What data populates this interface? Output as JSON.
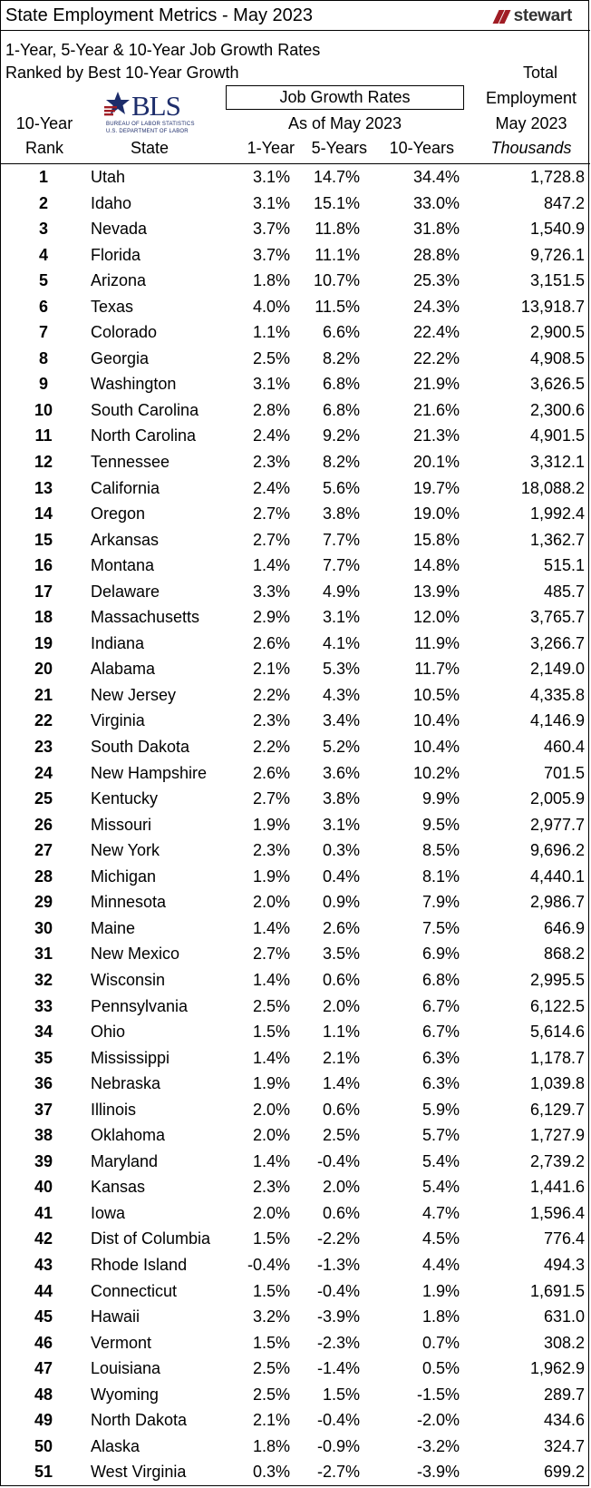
{
  "header": {
    "title": "State Employment Metrics - May 2023",
    "brand": "stewart",
    "subtitle_line1": "1-Year, 5-Year & 10-Year Job Growth Rates",
    "subtitle_line2": "Ranked by Best 10-Year Growth",
    "growth_box_label": "Job Growth Rates",
    "as_of": "As of May 2023",
    "total_line1": "Total",
    "total_line2": "Employment",
    "total_line3": "May 2023",
    "units": "Thousands",
    "rank_line1": "10-Year",
    "rank_line2": "Rank"
  },
  "bls_logo": {
    "text": "BLS",
    "sub1": "BUREAU OF LABOR STATISTICS",
    "sub2": "U.S. DEPARTMENT OF LABOR"
  },
  "columns": {
    "state": "State",
    "one_year": "1-Year",
    "five_years": "5-Years",
    "ten_years": "10-Years"
  },
  "colors": {
    "brand_red": "#a01c24",
    "bls_blue": "#1d2d6b"
  },
  "rows": [
    {
      "rank": "1",
      "state": "Utah",
      "g1": "3.1%",
      "g5": "14.7%",
      "g10": "34.4%",
      "emp": "1,728.8"
    },
    {
      "rank": "2",
      "state": "Idaho",
      "g1": "3.1%",
      "g5": "15.1%",
      "g10": "33.0%",
      "emp": "847.2"
    },
    {
      "rank": "3",
      "state": "Nevada",
      "g1": "3.7%",
      "g5": "11.8%",
      "g10": "31.8%",
      "emp": "1,540.9"
    },
    {
      "rank": "4",
      "state": "Florida",
      "g1": "3.7%",
      "g5": "11.1%",
      "g10": "28.8%",
      "emp": "9,726.1"
    },
    {
      "rank": "5",
      "state": "Arizona",
      "g1": "1.8%",
      "g5": "10.7%",
      "g10": "25.3%",
      "emp": "3,151.5"
    },
    {
      "rank": "6",
      "state": "Texas",
      "g1": "4.0%",
      "g5": "11.5%",
      "g10": "24.3%",
      "emp": "13,918.7"
    },
    {
      "rank": "7",
      "state": "Colorado",
      "g1": "1.1%",
      "g5": "6.6%",
      "g10": "22.4%",
      "emp": "2,900.5"
    },
    {
      "rank": "8",
      "state": "Georgia",
      "g1": "2.5%",
      "g5": "8.2%",
      "g10": "22.2%",
      "emp": "4,908.5"
    },
    {
      "rank": "9",
      "state": "Washington",
      "g1": "3.1%",
      "g5": "6.8%",
      "g10": "21.9%",
      "emp": "3,626.5"
    },
    {
      "rank": "10",
      "state": "South Carolina",
      "g1": "2.8%",
      "g5": "6.8%",
      "g10": "21.6%",
      "emp": "2,300.6"
    },
    {
      "rank": "11",
      "state": "North Carolina",
      "g1": "2.4%",
      "g5": "9.2%",
      "g10": "21.3%",
      "emp": "4,901.5"
    },
    {
      "rank": "12",
      "state": "Tennessee",
      "g1": "2.3%",
      "g5": "8.2%",
      "g10": "20.1%",
      "emp": "3,312.1"
    },
    {
      "rank": "13",
      "state": "California",
      "g1": "2.4%",
      "g5": "5.6%",
      "g10": "19.7%",
      "emp": "18,088.2"
    },
    {
      "rank": "14",
      "state": "Oregon",
      "g1": "2.7%",
      "g5": "3.8%",
      "g10": "19.0%",
      "emp": "1,992.4"
    },
    {
      "rank": "15",
      "state": "Arkansas",
      "g1": "2.7%",
      "g5": "7.7%",
      "g10": "15.8%",
      "emp": "1,362.7"
    },
    {
      "rank": "16",
      "state": "Montana",
      "g1": "1.4%",
      "g5": "7.7%",
      "g10": "14.8%",
      "emp": "515.1"
    },
    {
      "rank": "17",
      "state": "Delaware",
      "g1": "3.3%",
      "g5": "4.9%",
      "g10": "13.9%",
      "emp": "485.7"
    },
    {
      "rank": "18",
      "state": "Massachusetts",
      "g1": "2.9%",
      "g5": "3.1%",
      "g10": "12.0%",
      "emp": "3,765.7"
    },
    {
      "rank": "19",
      "state": "Indiana",
      "g1": "2.6%",
      "g5": "4.1%",
      "g10": "11.9%",
      "emp": "3,266.7"
    },
    {
      "rank": "20",
      "state": "Alabama",
      "g1": "2.1%",
      "g5": "5.3%",
      "g10": "11.7%",
      "emp": "2,149.0"
    },
    {
      "rank": "21",
      "state": "New Jersey",
      "g1": "2.2%",
      "g5": "4.3%",
      "g10": "10.5%",
      "emp": "4,335.8"
    },
    {
      "rank": "22",
      "state": "Virginia",
      "g1": "2.3%",
      "g5": "3.4%",
      "g10": "10.4%",
      "emp": "4,146.9"
    },
    {
      "rank": "23",
      "state": "South Dakota",
      "g1": "2.2%",
      "g5": "5.2%",
      "g10": "10.4%",
      "emp": "460.4"
    },
    {
      "rank": "24",
      "state": "New Hampshire",
      "g1": "2.6%",
      "g5": "3.6%",
      "g10": "10.2%",
      "emp": "701.5"
    },
    {
      "rank": "25",
      "state": "Kentucky",
      "g1": "2.7%",
      "g5": "3.8%",
      "g10": "9.9%",
      "emp": "2,005.9"
    },
    {
      "rank": "26",
      "state": "Missouri",
      "g1": "1.9%",
      "g5": "3.1%",
      "g10": "9.5%",
      "emp": "2,977.7"
    },
    {
      "rank": "27",
      "state": "New York",
      "g1": "2.3%",
      "g5": "0.3%",
      "g10": "8.5%",
      "emp": "9,696.2"
    },
    {
      "rank": "28",
      "state": "Michigan",
      "g1": "1.9%",
      "g5": "0.4%",
      "g10": "8.1%",
      "emp": "4,440.1"
    },
    {
      "rank": "29",
      "state": "Minnesota",
      "g1": "2.0%",
      "g5": "0.9%",
      "g10": "7.9%",
      "emp": "2,986.7"
    },
    {
      "rank": "30",
      "state": "Maine",
      "g1": "1.4%",
      "g5": "2.6%",
      "g10": "7.5%",
      "emp": "646.9"
    },
    {
      "rank": "31",
      "state": "New Mexico",
      "g1": "2.7%",
      "g5": "3.5%",
      "g10": "6.9%",
      "emp": "868.2"
    },
    {
      "rank": "32",
      "state": "Wisconsin",
      "g1": "1.4%",
      "g5": "0.6%",
      "g10": "6.8%",
      "emp": "2,995.5"
    },
    {
      "rank": "33",
      "state": "Pennsylvania",
      "g1": "2.5%",
      "g5": "2.0%",
      "g10": "6.7%",
      "emp": "6,122.5"
    },
    {
      "rank": "34",
      "state": "Ohio",
      "g1": "1.5%",
      "g5": "1.1%",
      "g10": "6.7%",
      "emp": "5,614.6"
    },
    {
      "rank": "35",
      "state": "Mississippi",
      "g1": "1.4%",
      "g5": "2.1%",
      "g10": "6.3%",
      "emp": "1,178.7"
    },
    {
      "rank": "36",
      "state": "Nebraska",
      "g1": "1.9%",
      "g5": "1.4%",
      "g10": "6.3%",
      "emp": "1,039.8"
    },
    {
      "rank": "37",
      "state": "Illinois",
      "g1": "2.0%",
      "g5": "0.6%",
      "g10": "5.9%",
      "emp": "6,129.7"
    },
    {
      "rank": "38",
      "state": "Oklahoma",
      "g1": "2.0%",
      "g5": "2.5%",
      "g10": "5.7%",
      "emp": "1,727.9"
    },
    {
      "rank": "39",
      "state": "Maryland",
      "g1": "1.4%",
      "g5": "-0.4%",
      "g10": "5.4%",
      "emp": "2,739.2"
    },
    {
      "rank": "40",
      "state": "Kansas",
      "g1": "2.3%",
      "g5": "2.0%",
      "g10": "5.4%",
      "emp": "1,441.6"
    },
    {
      "rank": "41",
      "state": "Iowa",
      "g1": "2.0%",
      "g5": "0.6%",
      "g10": "4.7%",
      "emp": "1,596.4"
    },
    {
      "rank": "42",
      "state": "Dist of Columbia",
      "g1": "1.5%",
      "g5": "-2.2%",
      "g10": "4.5%",
      "emp": "776.4"
    },
    {
      "rank": "43",
      "state": "Rhode Island",
      "g1": "-0.4%",
      "g5": "-1.3%",
      "g10": "4.4%",
      "emp": "494.3"
    },
    {
      "rank": "44",
      "state": "Connecticut",
      "g1": "1.5%",
      "g5": "-0.4%",
      "g10": "1.9%",
      "emp": "1,691.5"
    },
    {
      "rank": "45",
      "state": "Hawaii",
      "g1": "3.2%",
      "g5": "-3.9%",
      "g10": "1.8%",
      "emp": "631.0"
    },
    {
      "rank": "46",
      "state": "Vermont",
      "g1": "1.5%",
      "g5": "-2.3%",
      "g10": "0.7%",
      "emp": "308.2"
    },
    {
      "rank": "47",
      "state": "Louisiana",
      "g1": "2.5%",
      "g5": "-1.4%",
      "g10": "0.5%",
      "emp": "1,962.9"
    },
    {
      "rank": "48",
      "state": "Wyoming",
      "g1": "2.5%",
      "g5": "1.5%",
      "g10": "-1.5%",
      "emp": "289.7"
    },
    {
      "rank": "49",
      "state": "North Dakota",
      "g1": "2.1%",
      "g5": "-0.4%",
      "g10": "-2.0%",
      "emp": "434.6"
    },
    {
      "rank": "50",
      "state": "Alaska",
      "g1": "1.8%",
      "g5": "-0.9%",
      "g10": "-3.2%",
      "emp": "324.7"
    },
    {
      "rank": "51",
      "state": "West Virginia",
      "g1": "0.3%",
      "g5": "-2.7%",
      "g10": "-3.9%",
      "emp": "699.2"
    }
  ]
}
